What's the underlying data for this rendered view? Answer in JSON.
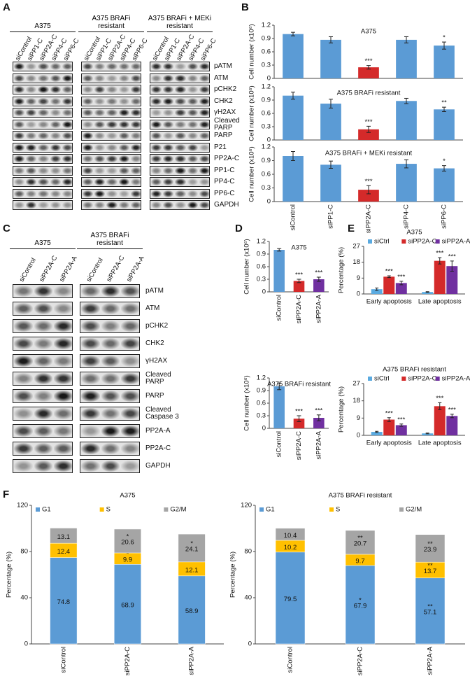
{
  "panels": [
    "A",
    "B",
    "C",
    "D",
    "E",
    "F"
  ],
  "blots_a": {
    "groups": [
      {
        "title": "A375",
        "lanes": [
          "siControl",
          "siPP1-C",
          "siPP2A-C",
          "siPP4-C",
          "siPP6-C"
        ]
      },
      {
        "title": "A375 BRAFi resistant",
        "lanes": [
          "siControl",
          "siPP1-C",
          "siPP2A-C",
          "siPP4-C",
          "siPP6-C"
        ]
      },
      {
        "title": "A375 BRAFi + MEKi resistant",
        "lanes": [
          "siControl",
          "siPP1-C",
          "siPP2A-C",
          "siPP4-C",
          "siPP6-C"
        ]
      }
    ],
    "rows": [
      "pATM",
      "ATM",
      "pCHK2",
      "CHK2",
      "γH2AX",
      "Cleaved PARP",
      "PARP",
      "P21",
      "PP2A-C",
      "PP1-C",
      "PP4-C",
      "PP6-C",
      "GAPDH"
    ]
  },
  "blots_c": {
    "groups": [
      {
        "title": "A375",
        "lanes": [
          "siControl",
          "siPP2A-C",
          "siPP2A-A"
        ]
      },
      {
        "title": "A375 BRAFi resistant",
        "lanes": [
          "siControl",
          "siPP2A-C",
          "siPP2A-A"
        ]
      }
    ],
    "rows": [
      "pATM",
      "ATM",
      "pCHK2",
      "CHK2",
      "γH2AX",
      "Cleaved PARP",
      "PARP",
      "Cleaved Caspase 3",
      "PP2A-A",
      "PP2A-C",
      "GAPDH"
    ]
  },
  "chart_data": [
    {
      "type": "bar",
      "title": "A375",
      "y_label": "Cell number (x10⁶)",
      "ylim": [
        0,
        1.2
      ],
      "yticks": [
        0,
        0.3,
        0.6,
        0.9,
        1.2
      ],
      "values": [
        1.0,
        0.87,
        0.25,
        0.87,
        0.74
      ],
      "errors": [
        0.04,
        0.07,
        0.04,
        0.07,
        0.08
      ],
      "colors": [
        "#5b9bd5",
        "#5b9bd5",
        "#d42a2a",
        "#5b9bd5",
        "#5b9bd5"
      ],
      "stars": [
        null,
        null,
        "***",
        null,
        "*"
      ]
    },
    {
      "type": "bar",
      "title": "A375 BRAFi resistant",
      "y_label": "Cell number (x10⁶)",
      "ylim": [
        0,
        1.2
      ],
      "yticks": [
        0,
        0.3,
        0.6,
        0.9,
        1.2
      ],
      "values": [
        1.0,
        0.82,
        0.24,
        0.88,
        0.69
      ],
      "errors": [
        0.08,
        0.1,
        0.07,
        0.06,
        0.05
      ],
      "colors": [
        "#5b9bd5",
        "#5b9bd5",
        "#d42a2a",
        "#5b9bd5",
        "#5b9bd5"
      ],
      "stars": [
        null,
        null,
        "***",
        null,
        "**"
      ]
    },
    {
      "type": "bar",
      "title": "A375 BRAFi + MEKi resistant",
      "y_label": "Cell number (x10⁶)",
      "ylim": [
        0,
        1.2
      ],
      "yticks": [
        0,
        0.3,
        0.6,
        0.9,
        1.2
      ],
      "categories": [
        "siControl",
        "siPP1-C",
        "siPP2A-C",
        "siPP4-C",
        "siPP6-C"
      ],
      "values": [
        1.0,
        0.81,
        0.26,
        0.83,
        0.73
      ],
      "errors": [
        0.1,
        0.08,
        0.09,
        0.09,
        0.06
      ],
      "colors": [
        "#5b9bd5",
        "#5b9bd5",
        "#d42a2a",
        "#5b9bd5",
        "#5b9bd5"
      ],
      "stars": [
        null,
        null,
        "***",
        null,
        "*"
      ]
    },
    {
      "type": "bar",
      "title": "A375",
      "y_label": "Cell number (x10⁶)",
      "ylim": [
        0,
        1.2
      ],
      "yticks": [
        0,
        0.3,
        0.6,
        0.9,
        1.2
      ],
      "categories": [
        "siControl",
        "siPP2A-C",
        "siPP2A-A"
      ],
      "values": [
        1.0,
        0.26,
        0.3
      ],
      "errors": [
        0.03,
        0.04,
        0.05
      ],
      "colors": [
        "#5b9bd5",
        "#d42a2a",
        "#7030a0"
      ],
      "stars": [
        null,
        "***",
        "***"
      ]
    },
    {
      "type": "bar",
      "title": "A375 BRAFi resistant",
      "y_label": "Cell number (x10⁶)",
      "ylim": [
        0,
        1.2
      ],
      "yticks": [
        0,
        0.3,
        0.6,
        0.9,
        1.2
      ],
      "categories": [
        "siControl",
        "siPP2A-C",
        "siPP2A-A"
      ],
      "values": [
        1.0,
        0.23,
        0.25
      ],
      "errors": [
        0.08,
        0.07,
        0.07
      ],
      "colors": [
        "#5b9bd5",
        "#d42a2a",
        "#7030a0"
      ],
      "stars": [
        null,
        "***",
        "***"
      ]
    },
    {
      "type": "grouped_bar",
      "title": "A375",
      "y_label": "Percentage (%)",
      "ylim": [
        0,
        27
      ],
      "yticks": [
        0,
        9,
        18,
        27
      ],
      "categories": [
        "Early apoptosis",
        "Late apoptosis"
      ],
      "series": [
        {
          "name": "siCtrl",
          "color": "#5aaae0",
          "values": [
            2.7,
            1.1
          ],
          "errors": [
            0.7,
            0.2
          ]
        },
        {
          "name": "siPP2A-C",
          "color": "#d42a2a",
          "values": [
            9.8,
            18.8
          ],
          "errors": [
            0.5,
            1.8
          ],
          "stars": [
            "***",
            "***"
          ]
        },
        {
          "name": "siPP2A-A",
          "color": "#7030a0",
          "values": [
            6.2,
            15.8
          ],
          "errors": [
            1.0,
            2.9
          ],
          "stars": [
            "***",
            "***"
          ]
        }
      ]
    },
    {
      "type": "grouped_bar",
      "title": "A375 BRAFi resistant",
      "y_label": "Percentage (%)",
      "ylim": [
        0,
        27
      ],
      "yticks": [
        0,
        9,
        18,
        27
      ],
      "categories": [
        "Early apoptosis",
        "Late apoptosis"
      ],
      "series": [
        {
          "name": "siCtrl",
          "color": "#5aaae0",
          "values": [
            1.8,
            1.0
          ],
          "errors": [
            0.3,
            0.2
          ]
        },
        {
          "name": "siPP2A-C",
          "color": "#d42a2a",
          "values": [
            8.2,
            15.2
          ],
          "errors": [
            1.0,
            1.8
          ],
          "stars": [
            "***",
            "***"
          ]
        },
        {
          "name": "siPP2A-A",
          "color": "#7030a0",
          "values": [
            5.3,
            10.1
          ],
          "errors": [
            0.6,
            0.9
          ],
          "stars": [
            "***",
            "***"
          ]
        }
      ]
    },
    {
      "type": "stacked_bar",
      "title": "A375",
      "y_label": "Percentage (%)",
      "ylim": [
        0,
        120
      ],
      "yticks": [
        0,
        40,
        80,
        120
      ],
      "categories": [
        "siControl",
        "siPP2A-C",
        "siPP2A-A"
      ],
      "series": [
        {
          "name": "G1",
          "color": "#5b9bd5",
          "values": [
            74.8,
            68.9,
            58.9
          ]
        },
        {
          "name": "S",
          "color": "#ffc000",
          "values": [
            12.4,
            9.9,
            12.1
          ],
          "stars": [
            null,
            "*",
            null
          ]
        },
        {
          "name": "G2/M",
          "color": "#a5a5a5",
          "values": [
            13.1,
            20.6,
            24.1
          ],
          "stars": [
            null,
            "*",
            "*"
          ]
        }
      ]
    },
    {
      "type": "stacked_bar",
      "title": "A375 BRAFi resistant",
      "y_label": "Percentage (%)",
      "ylim": [
        0,
        120
      ],
      "yticks": [
        0,
        40,
        80,
        120
      ],
      "categories": [
        "siControl",
        "siPP2A-C",
        "siPP2A-A"
      ],
      "series": [
        {
          "name": "G1",
          "color": "#5b9bd5",
          "values": [
            79.5,
            67.9,
            57.1
          ],
          "stars": [
            null,
            "*",
            "**"
          ]
        },
        {
          "name": "S",
          "color": "#ffc000",
          "values": [
            10.2,
            9.7,
            13.7
          ],
          "stars": [
            null,
            null,
            "**"
          ]
        },
        {
          "name": "G2/M",
          "color": "#a5a5a5",
          "values": [
            10.4,
            20.7,
            23.9
          ],
          "stars": [
            null,
            "**",
            "**"
          ]
        }
      ]
    }
  ]
}
